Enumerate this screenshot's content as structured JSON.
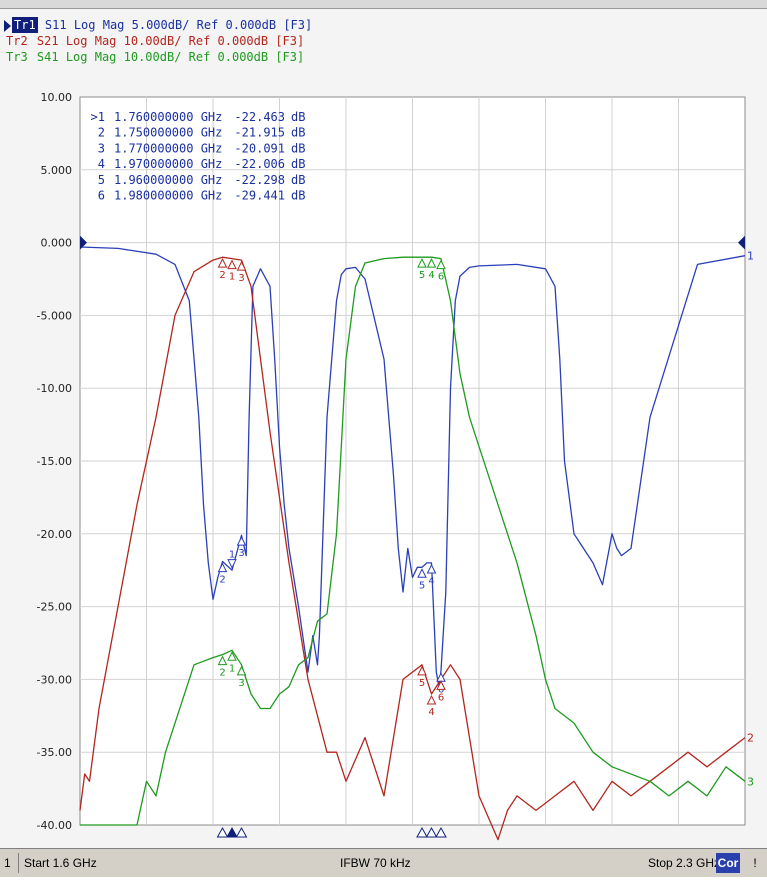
{
  "header": {
    "traces": [
      {
        "id": "Tr1",
        "text": "S11 Log Mag 5.000dB/ Ref 0.000dB [F3]",
        "color": "#1a2fa0",
        "active": true
      },
      {
        "id": "Tr2",
        "text": "S21 Log Mag 10.00dB/ Ref 0.000dB [F3]",
        "color": "#b3261e",
        "active": false
      },
      {
        "id": "Tr3",
        "text": "S41 Log Mag 10.00dB/ Ref 0.000dB [F3]",
        "color": "#1f9a1f",
        "active": false
      }
    ]
  },
  "markers_table": [
    {
      "label": ">1",
      "freq": "1.760000000 GHz",
      "value": "-22.463",
      "unit": "dB"
    },
    {
      "label": "2",
      "freq": "1.750000000 GHz",
      "value": "-21.915",
      "unit": "dB"
    },
    {
      "label": "3",
      "freq": "1.770000000 GHz",
      "value": "-20.091",
      "unit": "dB"
    },
    {
      "label": "4",
      "freq": "1.970000000 GHz",
      "value": "-22.006",
      "unit": "dB"
    },
    {
      "label": "5",
      "freq": "1.960000000 GHz",
      "value": "-22.298",
      "unit": "dB"
    },
    {
      "label": "6",
      "freq": "1.980000000 GHz",
      "value": "-29.441",
      "unit": "dB"
    }
  ],
  "status": {
    "channel": "1",
    "start": "Start 1.6 GHz",
    "ifbw": "IFBW 70 kHz",
    "stop": "Stop 2.3 GHz",
    "cor": "Cor",
    "bang": "!"
  },
  "chart_data": {
    "type": "line",
    "xlim": [
      1.6,
      2.3
    ],
    "ylim": [
      -40,
      10
    ],
    "y_ticks": [
      "10.00",
      "5.000",
      "0.000",
      "-5.000",
      "-10.00",
      "-15.00",
      "-20.00",
      "-25.00",
      "-30.00",
      "-35.00",
      "-40.00"
    ],
    "x_divisions": 10,
    "grid": true,
    "ref_level": 0,
    "series": [
      {
        "name": "S11",
        "trace": "1",
        "color": "#2b3fb8",
        "x": [
          1.6,
          1.64,
          1.68,
          1.7,
          1.715,
          1.725,
          1.73,
          1.735,
          1.74,
          1.745,
          1.75,
          1.76,
          1.77,
          1.775,
          1.778,
          1.782,
          1.79,
          1.8,
          1.805,
          1.81,
          1.815,
          1.82,
          1.83,
          1.84,
          1.845,
          1.85,
          1.852,
          1.86,
          1.87,
          1.875,
          1.88,
          1.89,
          1.9,
          1.92,
          1.93,
          1.935,
          1.94,
          1.945,
          1.95,
          1.955,
          1.96,
          1.965,
          1.97,
          1.975,
          1.978,
          1.98,
          1.985,
          1.99,
          1.995,
          2.0,
          2.01,
          2.02,
          2.06,
          2.09,
          2.1,
          2.105,
          2.11,
          2.12,
          2.13,
          2.14,
          2.15,
          2.16,
          2.165,
          2.17,
          2.18,
          2.2,
          2.25,
          2.3
        ],
        "y": [
          -0.3,
          -0.4,
          -0.8,
          -1.5,
          -4,
          -12,
          -18,
          -22,
          -24.5,
          -23,
          -21.9,
          -22.5,
          -20.1,
          -21.5,
          -12,
          -3,
          -1.8,
          -3,
          -8,
          -14,
          -18,
          -21,
          -25,
          -29.5,
          -27,
          -29,
          -27,
          -12,
          -4,
          -2.2,
          -1.8,
          -1.7,
          -2.5,
          -8,
          -16,
          -21,
          -24,
          -21,
          -23,
          -22.3,
          -22.3,
          -22,
          -22,
          -29.5,
          -30.5,
          -29.4,
          -24,
          -10,
          -4,
          -2.3,
          -1.7,
          -1.6,
          -1.5,
          -1.8,
          -3,
          -8,
          -15,
          -20,
          -21,
          -22,
          -23.5,
          -20,
          -21,
          -21.5,
          -21,
          -12,
          -1.5,
          -0.9
        ]
      },
      {
        "name": "S21",
        "trace": "2",
        "color": "#b3261e",
        "x": [
          1.6,
          1.605,
          1.61,
          1.62,
          1.64,
          1.66,
          1.68,
          1.7,
          1.72,
          1.74,
          1.75,
          1.76,
          1.77,
          1.78,
          1.79,
          1.8,
          1.82,
          1.84,
          1.86,
          1.87,
          1.88,
          1.9,
          1.92,
          1.94,
          1.96,
          1.97,
          1.98,
          1.99,
          2.0,
          2.01,
          2.02,
          2.04,
          2.05,
          2.06,
          2.08,
          2.1,
          2.12,
          2.14,
          2.16,
          2.18,
          2.2,
          2.22,
          2.24,
          2.26,
          2.28,
          2.3
        ],
        "y": [
          -39,
          -36.5,
          -37,
          -32,
          -25,
          -18,
          -12,
          -5,
          -2,
          -1.2,
          -1.0,
          -1.1,
          -1.2,
          -3,
          -8,
          -13,
          -22,
          -30,
          -35,
          -35,
          -37,
          -34,
          -38,
          -30,
          -29,
          -31,
          -30,
          -29,
          -30,
          -34,
          -38,
          -41,
          -39,
          -38,
          -39,
          -38,
          -37,
          -39,
          -37,
          -38,
          -37,
          -36,
          -35,
          -36,
          -35,
          -34
        ]
      },
      {
        "name": "S41",
        "trace": "3",
        "color": "#1f9a1f",
        "x": [
          1.6,
          1.62,
          1.64,
          1.65,
          1.66,
          1.67,
          1.68,
          1.69,
          1.7,
          1.72,
          1.74,
          1.75,
          1.76,
          1.77,
          1.78,
          1.79,
          1.8,
          1.81,
          1.82,
          1.83,
          1.84,
          1.85,
          1.86,
          1.87,
          1.875,
          1.88,
          1.89,
          1.9,
          1.92,
          1.94,
          1.96,
          1.97,
          1.98,
          1.99,
          2.0,
          2.01,
          2.02,
          2.04,
          2.06,
          2.08,
          2.09,
          2.1,
          2.12,
          2.14,
          2.16,
          2.2,
          2.22,
          2.24,
          2.26,
          2.28,
          2.3
        ],
        "y": [
          -40,
          -40,
          -40,
          -40,
          -40,
          -37,
          -38,
          -35,
          -33,
          -29,
          -28.5,
          -28.3,
          -28,
          -29,
          -31,
          -32,
          -32,
          -31,
          -30.5,
          -29,
          -28.5,
          -26,
          -25.5,
          -20,
          -14,
          -8,
          -3,
          -1.4,
          -1.1,
          -1.0,
          -1.0,
          -1.0,
          -1.1,
          -4,
          -9,
          -12,
          -14,
          -18,
          -22,
          -27,
          -30,
          -32,
          -33,
          -35,
          -36,
          -37,
          -38,
          -37,
          -38,
          -36,
          -37
        ]
      }
    ],
    "markers": [
      {
        "trace": "1",
        "num": "1",
        "x": 1.76,
        "y": -22.463,
        "active": true
      },
      {
        "trace": "1",
        "num": "2",
        "x": 1.75,
        "y": -21.915
      },
      {
        "trace": "1",
        "num": "3",
        "x": 1.77,
        "y": -20.091
      },
      {
        "trace": "1",
        "num": "4",
        "x": 1.97,
        "y": -22.006
      },
      {
        "trace": "1",
        "num": "5",
        "x": 1.96,
        "y": -22.298
      },
      {
        "trace": "1",
        "num": "6",
        "x": 1.98,
        "y": -29.441
      },
      {
        "trace": "2",
        "num": "1",
        "x": 1.76,
        "y": -1.1
      },
      {
        "trace": "2",
        "num": "2",
        "x": 1.75,
        "y": -1.0
      },
      {
        "trace": "2",
        "num": "3",
        "x": 1.77,
        "y": -1.2
      },
      {
        "trace": "2",
        "num": "4",
        "x": 1.97,
        "y": -31
      },
      {
        "trace": "2",
        "num": "5",
        "x": 1.96,
        "y": -29
      },
      {
        "trace": "2",
        "num": "6",
        "x": 1.98,
        "y": -30
      },
      {
        "trace": "3",
        "num": "1",
        "x": 1.76,
        "y": -28
      },
      {
        "trace": "3",
        "num": "2",
        "x": 1.75,
        "y": -28.3
      },
      {
        "trace": "3",
        "num": "3",
        "x": 1.77,
        "y": -29
      },
      {
        "trace": "3",
        "num": "4",
        "x": 1.97,
        "y": -1.0
      },
      {
        "trace": "3",
        "num": "5",
        "x": 1.96,
        "y": -1.0
      },
      {
        "trace": "3",
        "num": "6",
        "x": 1.98,
        "y": -1.1
      }
    ],
    "end_labels": [
      {
        "trace": "1",
        "text": "1",
        "y": -0.9
      },
      {
        "trace": "2",
        "text": "2",
        "y": -34
      },
      {
        "trace": "3",
        "text": "3",
        "y": -37
      }
    ]
  }
}
